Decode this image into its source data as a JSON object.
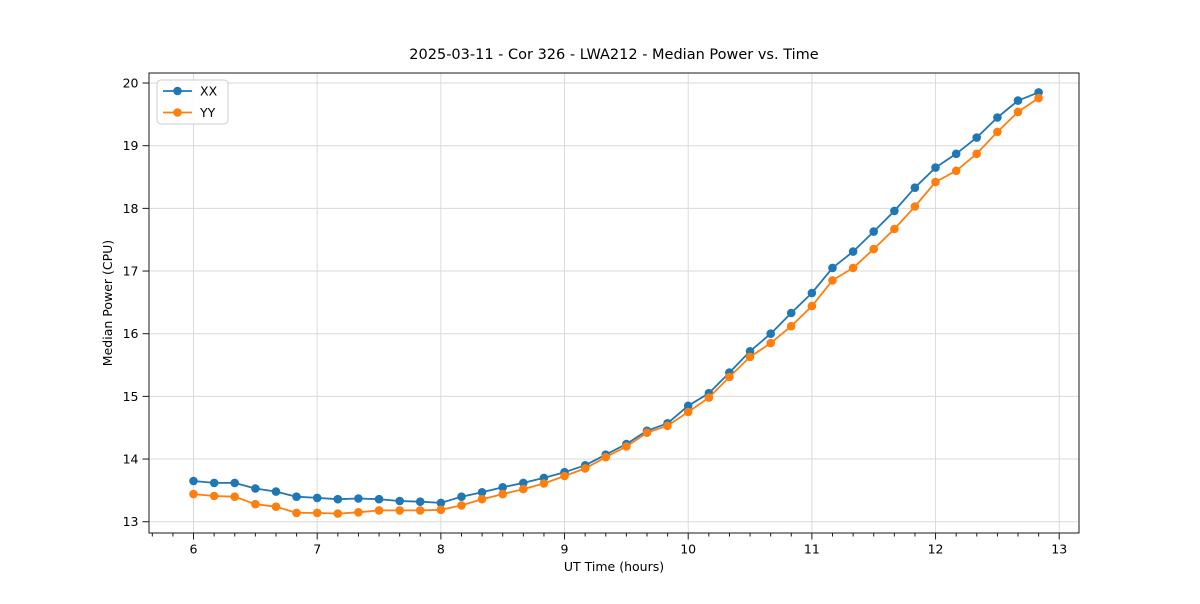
{
  "chart_data": {
    "type": "line",
    "title": "2025-03-11 - Cor 326 - LWA212 - Median Power vs. Time",
    "xlabel": "UT Time (hours)",
    "ylabel": "Median Power (CPU)",
    "xlim": [
      5.64,
      13.16
    ],
    "ylim": [
      12.82,
      20.16
    ],
    "x_ticks": [
      6,
      7,
      8,
      9,
      10,
      11,
      12,
      13
    ],
    "y_ticks": [
      13,
      14,
      15,
      16,
      17,
      18,
      19,
      20
    ],
    "x_minor_tick_step": 0.16667,
    "grid": "major-only",
    "grid_color": "#dadada",
    "legend_position": "upper left",
    "x": [
      6.0,
      6.167,
      6.333,
      6.5,
      6.667,
      6.833,
      7.0,
      7.167,
      7.333,
      7.5,
      7.667,
      7.833,
      8.0,
      8.167,
      8.333,
      8.5,
      8.667,
      8.833,
      9.0,
      9.167,
      9.333,
      9.5,
      9.667,
      9.833,
      10.0,
      10.167,
      10.333,
      10.5,
      10.667,
      10.833,
      11.0,
      11.167,
      11.333,
      11.5,
      11.667,
      11.833,
      12.0,
      12.167,
      12.333,
      12.5,
      12.667,
      12.833
    ],
    "series": [
      {
        "name": "XX",
        "color": "#1f77b4",
        "values": [
          13.65,
          13.62,
          13.62,
          13.53,
          13.48,
          13.4,
          13.38,
          13.36,
          13.37,
          13.36,
          13.33,
          13.32,
          13.3,
          13.4,
          13.47,
          13.55,
          13.62,
          13.7,
          13.79,
          13.9,
          14.07,
          14.24,
          14.45,
          14.57,
          14.85,
          15.05,
          15.38,
          15.72,
          16.0,
          16.33,
          16.65,
          17.05,
          17.31,
          17.63,
          17.96,
          18.33,
          18.65,
          18.87,
          19.13,
          19.45,
          19.72,
          19.85
        ]
      },
      {
        "name": "YY",
        "color": "#ff7f0e",
        "values": [
          13.44,
          13.41,
          13.4,
          13.28,
          13.24,
          13.14,
          13.14,
          13.13,
          13.15,
          13.18,
          13.18,
          13.18,
          13.19,
          13.26,
          13.36,
          13.44,
          13.52,
          13.61,
          13.73,
          13.85,
          14.03,
          14.2,
          14.42,
          14.53,
          14.75,
          14.98,
          15.31,
          15.63,
          15.85,
          16.12,
          16.44,
          16.85,
          17.05,
          17.35,
          17.67,
          18.03,
          18.42,
          18.6,
          18.87,
          19.22,
          19.54,
          19.76
        ]
      }
    ]
  }
}
